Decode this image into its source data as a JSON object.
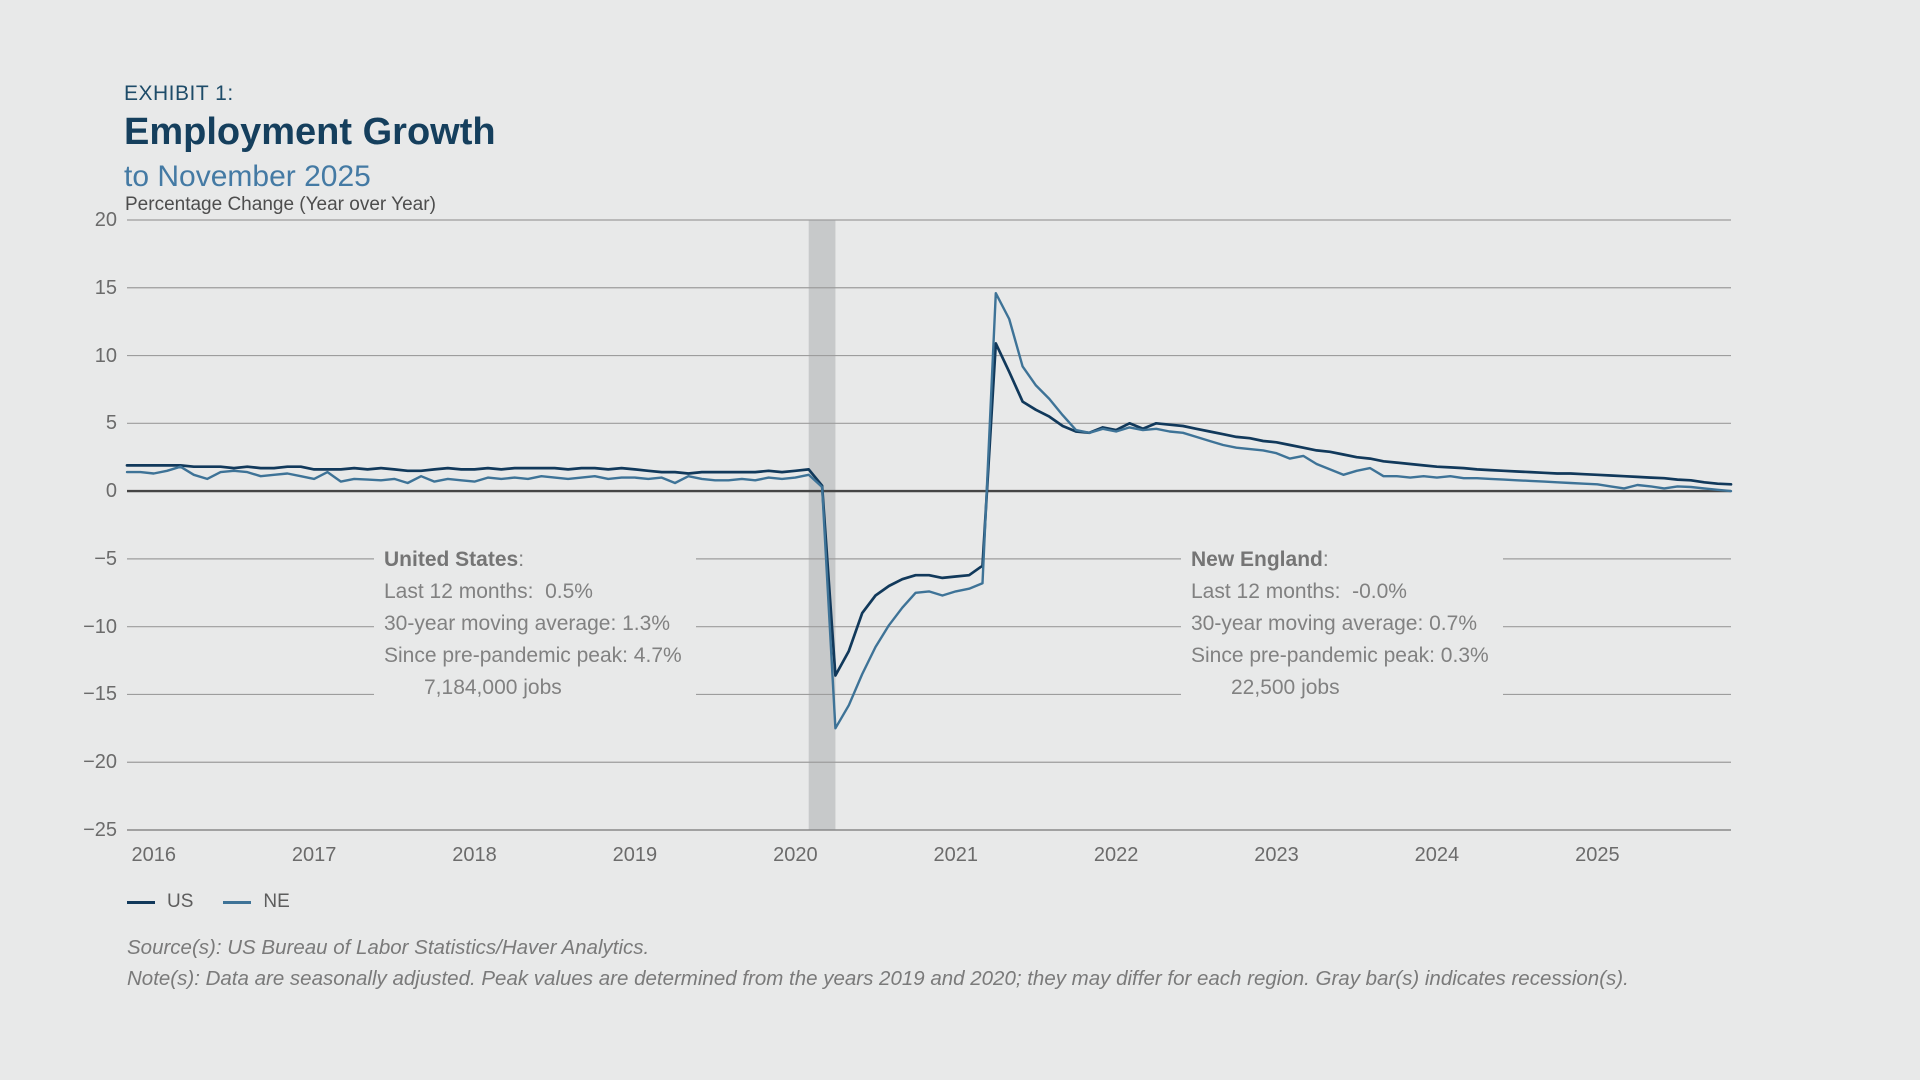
{
  "header": {
    "eyebrow": "EXHIBIT 1:",
    "title": "Employment Growth",
    "subtitle": "to November 2025"
  },
  "chart_data": {
    "type": "line",
    "title": "Employment Growth to November 2025",
    "ylabel": "Percentage Change (Year over Year)",
    "ylim": [
      -25,
      20
    ],
    "yticks": [
      20,
      15,
      10,
      5,
      0,
      -5,
      -10,
      -15,
      -20,
      -25
    ],
    "xticks": [
      2016,
      2017,
      2018,
      2019,
      2020,
      2021,
      2022,
      2023,
      2024,
      2025
    ],
    "x_start": "2015-11",
    "x_end": "2025-11",
    "frequency": "monthly",
    "grid": true,
    "legend_position": "bottom-left",
    "recession_color": "#c7c9ca",
    "recession_bars": [
      {
        "start": "2020-02",
        "end": "2020-04"
      }
    ],
    "series": [
      {
        "name": "US",
        "color": "#11395b",
        "values": [
          1.9,
          1.9,
          1.9,
          1.9,
          1.9,
          1.8,
          1.8,
          1.8,
          1.7,
          1.8,
          1.7,
          1.7,
          1.8,
          1.8,
          1.6,
          1.6,
          1.6,
          1.7,
          1.6,
          1.7,
          1.6,
          1.5,
          1.5,
          1.6,
          1.7,
          1.6,
          1.6,
          1.7,
          1.6,
          1.7,
          1.7,
          1.7,
          1.7,
          1.6,
          1.7,
          1.7,
          1.6,
          1.7,
          1.6,
          1.5,
          1.4,
          1.4,
          1.3,
          1.4,
          1.4,
          1.4,
          1.4,
          1.4,
          1.5,
          1.4,
          1.5,
          1.6,
          0.4,
          -13.6,
          -11.8,
          -9.0,
          -7.7,
          -7.0,
          -6.5,
          -6.2,
          -6.2,
          -6.4,
          -6.3,
          -6.2,
          -5.5,
          10.9,
          8.8,
          6.6,
          6.0,
          5.5,
          4.8,
          4.4,
          4.3,
          4.7,
          4.5,
          5.0,
          4.6,
          5.0,
          4.9,
          4.8,
          4.6,
          4.4,
          4.2,
          4.0,
          3.9,
          3.7,
          3.6,
          3.4,
          3.2,
          3.0,
          2.9,
          2.7,
          2.5,
          2.4,
          2.2,
          2.1,
          2.0,
          1.9,
          1.8,
          1.75,
          1.7,
          1.6,
          1.55,
          1.5,
          1.45,
          1.4,
          1.35,
          1.3,
          1.3,
          1.25,
          1.2,
          1.15,
          1.1,
          1.05,
          1.0,
          0.95,
          0.85,
          0.8,
          0.65,
          0.55,
          0.5
        ]
      },
      {
        "name": "NE",
        "color": "#3e7397",
        "values": [
          1.4,
          1.4,
          1.3,
          1.5,
          1.8,
          1.2,
          0.9,
          1.4,
          1.5,
          1.4,
          1.1,
          1.2,
          1.3,
          1.1,
          0.9,
          1.4,
          0.7,
          0.9,
          0.85,
          0.8,
          0.9,
          0.6,
          1.1,
          0.7,
          0.9,
          0.8,
          0.7,
          1.0,
          0.9,
          1.0,
          0.9,
          1.1,
          1.0,
          0.9,
          1.0,
          1.1,
          0.9,
          1.0,
          1.0,
          0.9,
          1.0,
          0.6,
          1.1,
          0.9,
          0.8,
          0.8,
          0.9,
          0.8,
          1.0,
          0.9,
          1.0,
          1.2,
          0.3,
          -17.5,
          -15.8,
          -13.5,
          -11.5,
          -9.9,
          -8.6,
          -7.5,
          -7.4,
          -7.7,
          -7.4,
          -7.2,
          -6.8,
          14.6,
          12.7,
          9.2,
          7.8,
          6.8,
          5.6,
          4.5,
          4.3,
          4.6,
          4.4,
          4.7,
          4.5,
          4.6,
          4.4,
          4.3,
          4.0,
          3.7,
          3.4,
          3.2,
          3.1,
          3.0,
          2.8,
          2.4,
          2.6,
          2.0,
          1.6,
          1.2,
          1.5,
          1.7,
          1.1,
          1.1,
          1.0,
          1.1,
          1.0,
          1.1,
          0.95,
          0.95,
          0.9,
          0.85,
          0.8,
          0.75,
          0.7,
          0.65,
          0.6,
          0.55,
          0.5,
          0.35,
          0.2,
          0.45,
          0.35,
          0.2,
          0.35,
          0.3,
          0.2,
          0.1,
          0.0
        ]
      }
    ]
  },
  "annotations": [
    {
      "name": "United States",
      "colon": ":",
      "lines": [
        "Last 12 months:  0.5%",
        "30-year moving average: 1.3%",
        "Since pre-pandemic peak: 4.7%"
      ],
      "jobs": "7,184,000 jobs"
    },
    {
      "name": "New England",
      "colon": ":",
      "lines": [
        "Last 12 months:  -0.0%",
        "30-year moving average: 0.7%",
        "Since pre-pandemic peak: 0.3%"
      ],
      "jobs": "22,500 jobs"
    }
  ],
  "footer": {
    "source": "Source(s): US Bureau of Labor Statistics/Haver Analytics.",
    "note": "Note(s): Data are seasonally adjusted. Peak values are determined from the years 2019 and 2020; they may differ for each region. Gray bar(s) indicates recession(s)."
  }
}
